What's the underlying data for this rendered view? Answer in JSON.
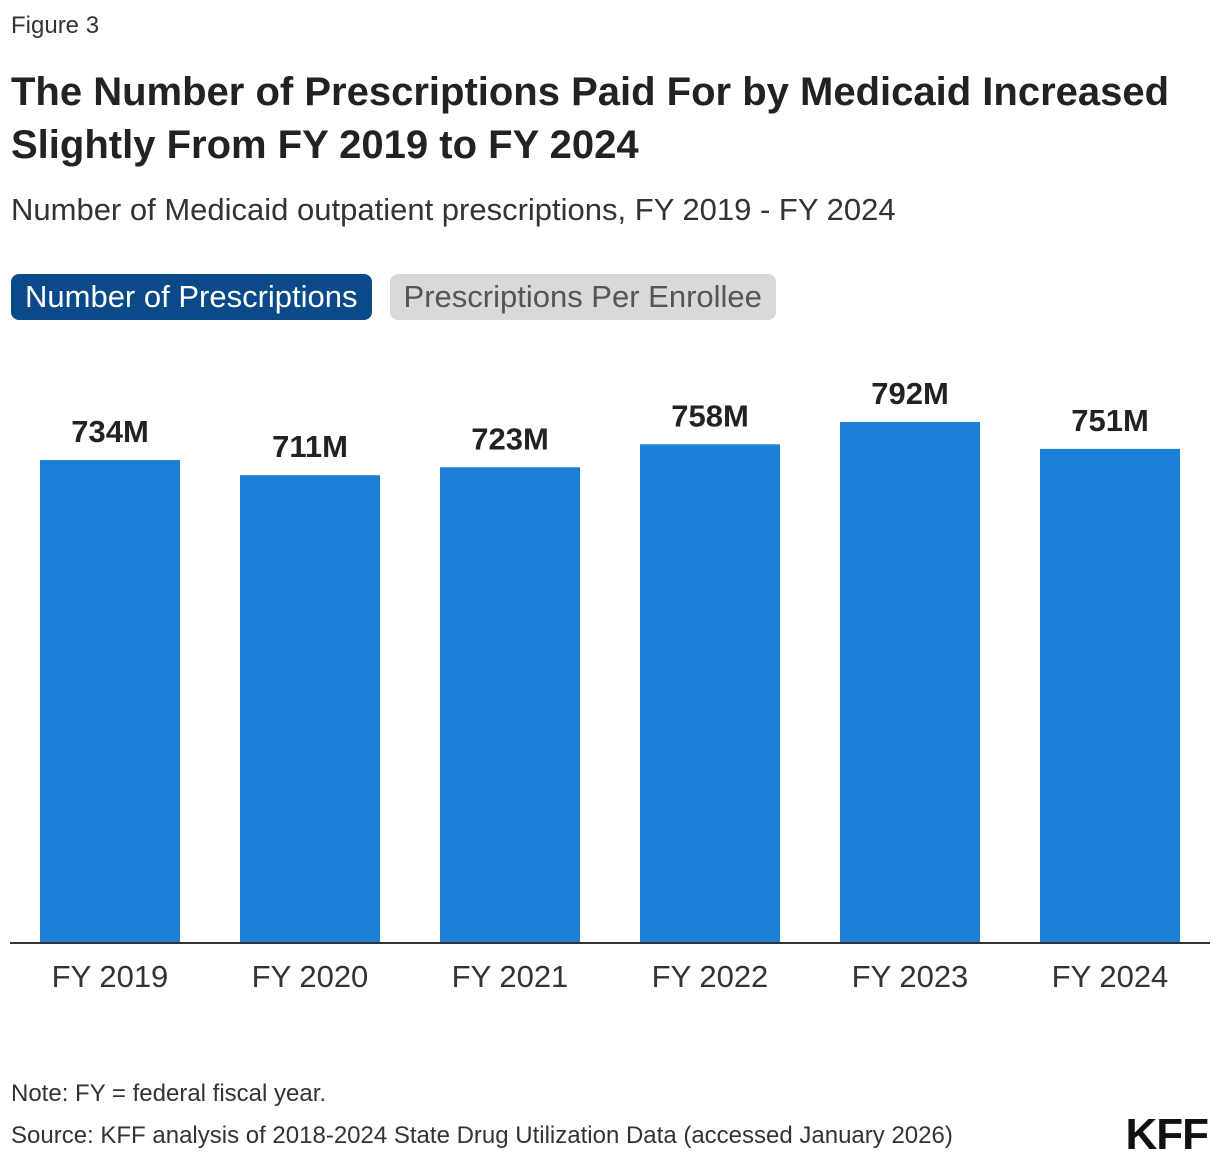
{
  "figure_label": "Figure 3",
  "title": "The Number of Prescriptions Paid For by Medicaid Increased Slightly From FY 2019 to FY 2024",
  "subtitle": "Number of Medicaid outpatient prescriptions, FY 2019 - FY 2024",
  "toggles": [
    {
      "label": "Number of Prescriptions",
      "active": true
    },
    {
      "label": "Prescriptions Per Enrollee",
      "active": false
    }
  ],
  "chart_data": {
    "type": "bar",
    "categories": [
      "FY 2019",
      "FY 2020",
      "FY 2021",
      "FY 2022",
      "FY 2023",
      "FY 2024"
    ],
    "values": [
      734,
      711,
      723,
      758,
      792,
      751
    ],
    "data_labels": [
      "734M",
      "711M",
      "723M",
      "758M",
      "792M",
      "751M"
    ],
    "unit": "M",
    "ylim": [
      0,
      900
    ],
    "grid": false,
    "bar_color": "#1c7fd6",
    "axis_color": "#333333"
  },
  "note": "Note: FY = federal fiscal year.",
  "source": "Source: KFF analysis of 2018-2024 State Drug Utilization Data (accessed January 2026)",
  "logo_text": "KFF"
}
